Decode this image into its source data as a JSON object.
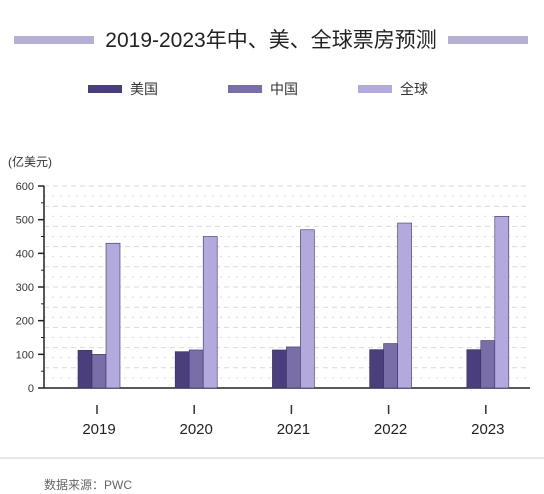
{
  "title": "2019-2023年中、美、全球票房预测",
  "unit_label": "(亿美元)",
  "source": "数据来源：PWC",
  "colors": {
    "usa": "#4b3e7c",
    "china": "#7a6ea8",
    "global": "#b3a9dc",
    "grid": "#d9d9d9",
    "accent": "#b7afd3"
  },
  "chart_data": {
    "type": "bar",
    "categories": [
      "2019",
      "2020",
      "2021",
      "2022",
      "2023"
    ],
    "series": [
      {
        "name": "美国",
        "values": [
          112,
          108,
          113,
          114,
          114
        ]
      },
      {
        "name": "中国",
        "values": [
          100,
          113,
          122,
          132,
          141
        ]
      },
      {
        "name": "全球",
        "values": [
          430,
          450,
          470,
          490,
          510
        ]
      }
    ],
    "yticks": [
      "0",
      "100",
      "200",
      "300",
      "400",
      "500",
      "600"
    ],
    "ylim": [
      0,
      600
    ],
    "legend_position": "top",
    "grid": true
  }
}
